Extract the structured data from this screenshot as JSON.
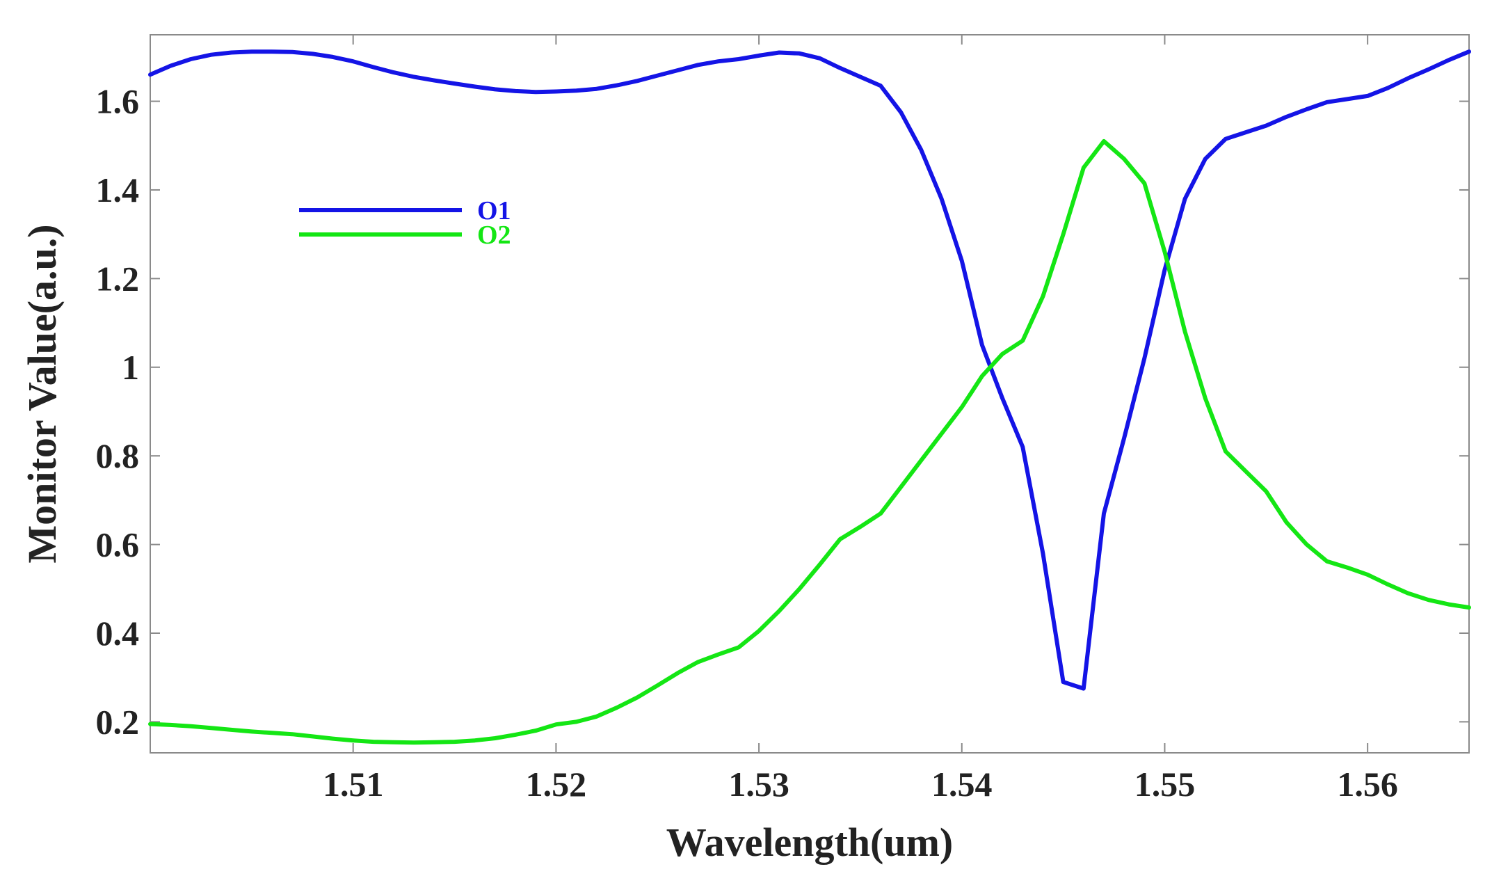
{
  "chart_data": {
    "type": "line",
    "title": "",
    "xlabel": "Wavelength(um)",
    "ylabel": "Monitor Value(a.u.)",
    "xlim": [
      1.5,
      1.565
    ],
    "ylim": [
      0.13,
      1.75
    ],
    "xticks": [
      1.51,
      1.52,
      1.53,
      1.54,
      1.55,
      1.56
    ],
    "xtick_labels": [
      "1.51",
      "1.52",
      "1.53",
      "1.54",
      "1.55",
      "1.56"
    ],
    "yticks": [
      0.2,
      0.4,
      0.6,
      0.8,
      1,
      1.2,
      1.4,
      1.6
    ],
    "ytick_labels": [
      "0.2",
      "0.4",
      "0.6",
      "0.8",
      "1",
      "1.2",
      "1.4",
      "1.6"
    ],
    "grid": false,
    "legend_position": "top-left",
    "series": [
      {
        "name": "O1",
        "color": "#1414e6",
        "x": [
          1.5,
          1.501,
          1.502,
          1.503,
          1.504,
          1.505,
          1.506,
          1.507,
          1.508,
          1.509,
          1.51,
          1.511,
          1.512,
          1.513,
          1.514,
          1.515,
          1.516,
          1.517,
          1.518,
          1.519,
          1.52,
          1.521,
          1.522,
          1.523,
          1.524,
          1.525,
          1.526,
          1.527,
          1.528,
          1.529,
          1.53,
          1.531,
          1.532,
          1.533,
          1.534,
          1.535,
          1.536,
          1.537,
          1.538,
          1.539,
          1.54,
          1.541,
          1.542,
          1.543,
          1.544,
          1.545,
          1.546,
          1.547,
          1.548,
          1.549,
          1.55,
          1.551,
          1.552,
          1.553,
          1.554,
          1.555,
          1.556,
          1.557,
          1.558,
          1.559,
          1.56,
          1.561,
          1.562,
          1.563,
          1.564,
          1.565
        ],
        "y": [
          1.66,
          1.68,
          1.695,
          1.705,
          1.71,
          1.712,
          1.712,
          1.711,
          1.707,
          1.7,
          1.69,
          1.677,
          1.665,
          1.655,
          1.647,
          1.64,
          1.633,
          1.627,
          1.623,
          1.621,
          1.622,
          1.624,
          1.628,
          1.636,
          1.646,
          1.658,
          1.67,
          1.682,
          1.69,
          1.695,
          1.703,
          1.71,
          1.708,
          1.697,
          1.675,
          1.655,
          1.635,
          1.575,
          1.49,
          1.38,
          1.24,
          1.05,
          0.93,
          0.82,
          0.58,
          0.29,
          0.275,
          0.67,
          0.84,
          1.02,
          1.22,
          1.38,
          1.47,
          1.515,
          1.53,
          1.545,
          1.565,
          1.582,
          1.598,
          1.605,
          1.612,
          1.63,
          1.652,
          1.672,
          1.693,
          1.712
        ]
      },
      {
        "name": "O2",
        "color": "#14e614",
        "x": [
          1.5,
          1.501,
          1.502,
          1.503,
          1.504,
          1.505,
          1.506,
          1.507,
          1.508,
          1.509,
          1.51,
          1.511,
          1.512,
          1.513,
          1.514,
          1.515,
          1.516,
          1.517,
          1.518,
          1.519,
          1.52,
          1.521,
          1.522,
          1.523,
          1.524,
          1.525,
          1.526,
          1.527,
          1.528,
          1.529,
          1.53,
          1.531,
          1.532,
          1.533,
          1.534,
          1.535,
          1.536,
          1.537,
          1.538,
          1.539,
          1.54,
          1.541,
          1.542,
          1.543,
          1.544,
          1.545,
          1.546,
          1.547,
          1.548,
          1.549,
          1.55,
          1.551,
          1.552,
          1.553,
          1.554,
          1.555,
          1.556,
          1.557,
          1.558,
          1.559,
          1.56,
          1.561,
          1.562,
          1.563,
          1.564,
          1.565
        ],
        "y": [
          0.195,
          0.193,
          0.19,
          0.186,
          0.182,
          0.178,
          0.175,
          0.172,
          0.167,
          0.162,
          0.158,
          0.155,
          0.154,
          0.153,
          0.154,
          0.155,
          0.158,
          0.163,
          0.171,
          0.18,
          0.194,
          0.2,
          0.212,
          0.232,
          0.255,
          0.282,
          0.31,
          0.335,
          0.352,
          0.368,
          0.405,
          0.45,
          0.5,
          0.555,
          0.612,
          0.64,
          0.67,
          0.73,
          0.79,
          0.85,
          0.91,
          0.98,
          1.03,
          1.06,
          1.16,
          1.3,
          1.45,
          1.51,
          1.47,
          1.415,
          1.26,
          1.08,
          0.93,
          0.81,
          0.765,
          0.72,
          0.65,
          0.6,
          0.562,
          0.548,
          0.532,
          0.51,
          0.49,
          0.475,
          0.465,
          0.458
        ]
      }
    ]
  }
}
